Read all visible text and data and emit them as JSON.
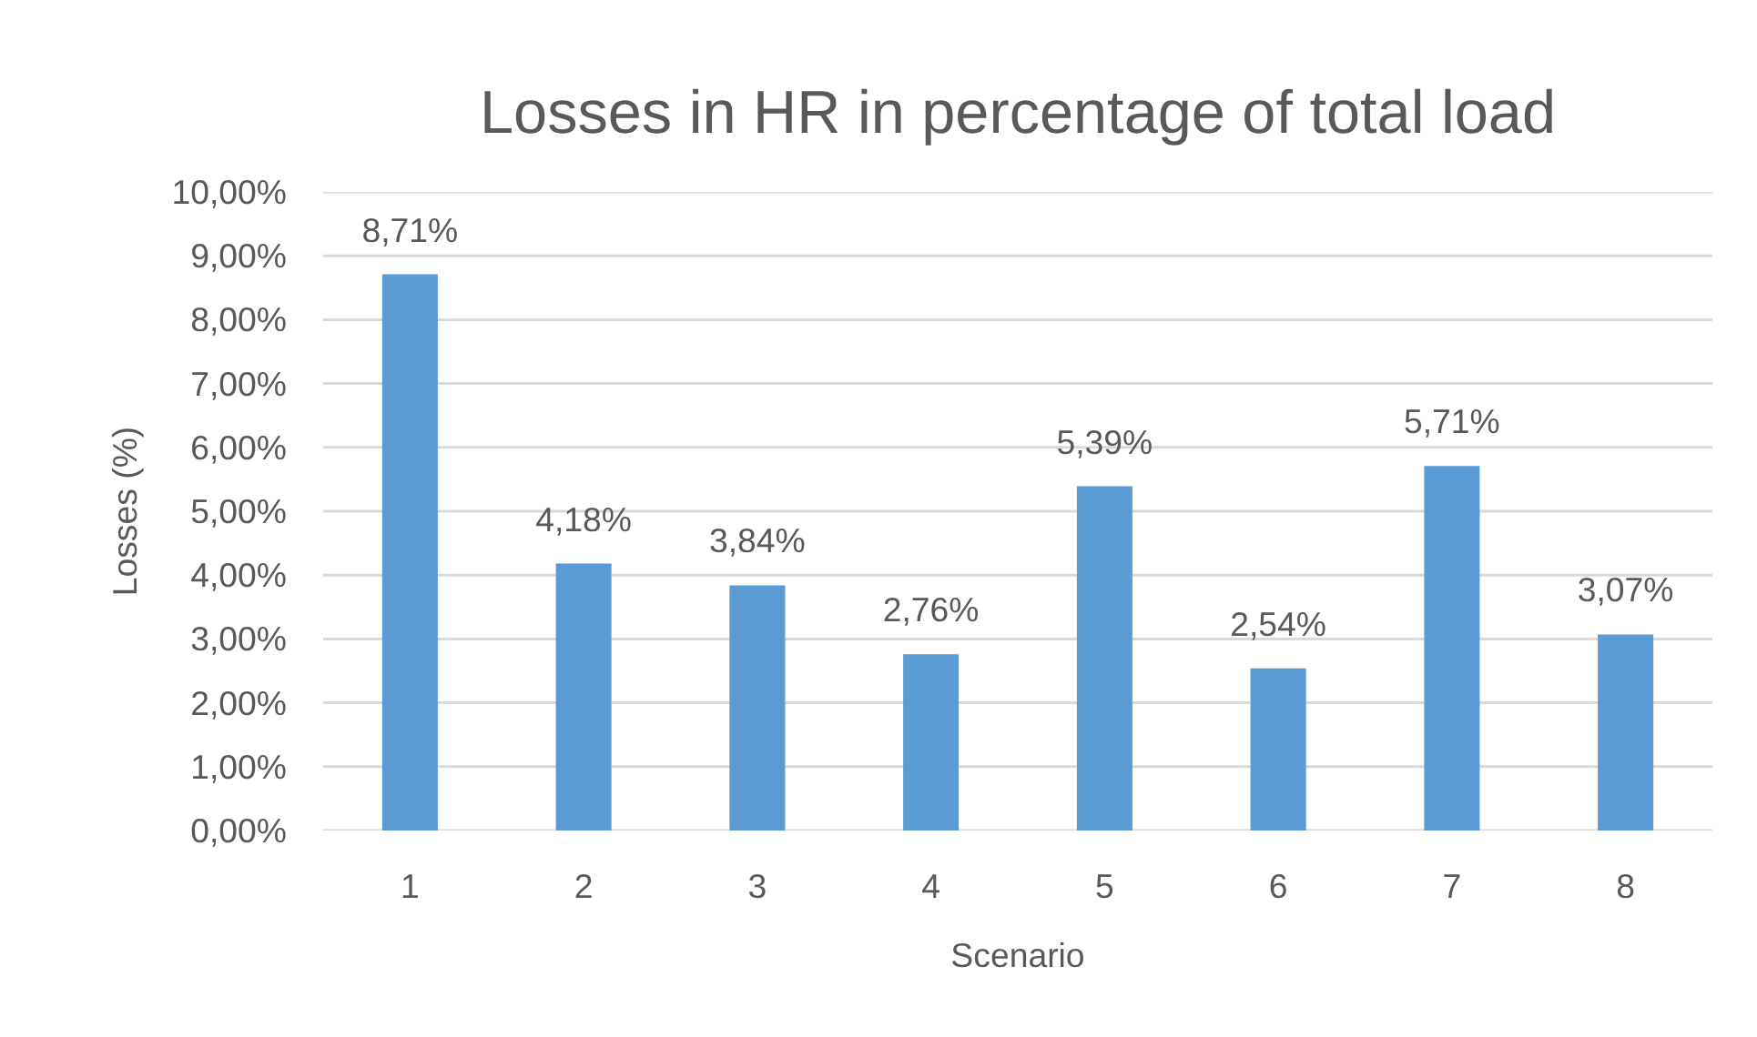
{
  "chart_data": {
    "type": "bar",
    "title": "Losses in HR in percentage of total load",
    "xlabel": "Scenario",
    "ylabel": "Losses (%)",
    "categories": [
      "1",
      "2",
      "3",
      "4",
      "5",
      "6",
      "7",
      "8"
    ],
    "values": [
      8.71,
      4.18,
      3.84,
      2.76,
      5.39,
      2.54,
      5.71,
      3.07
    ],
    "value_labels": [
      "8,71%",
      "4,18%",
      "3,84%",
      "2,76%",
      "5,39%",
      "2,54%",
      "5,71%",
      "3,07%"
    ],
    "color": "#5b9bd5",
    "ylim": [
      0,
      10
    ],
    "yticks": [
      {
        "value": 0,
        "label": "0,00%"
      },
      {
        "value": 1,
        "label": "1,00%"
      },
      {
        "value": 2,
        "label": "2,00%"
      },
      {
        "value": 3,
        "label": "3,00%"
      },
      {
        "value": 4,
        "label": "4,00%"
      },
      {
        "value": 5,
        "label": "5,00%"
      },
      {
        "value": 6,
        "label": "6,00%"
      },
      {
        "value": 7,
        "label": "7,00%"
      },
      {
        "value": 8,
        "label": "8,00%"
      },
      {
        "value": 9,
        "label": "9,00%"
      },
      {
        "value": 10,
        "label": "10,00%"
      }
    ],
    "grid": "y"
  }
}
